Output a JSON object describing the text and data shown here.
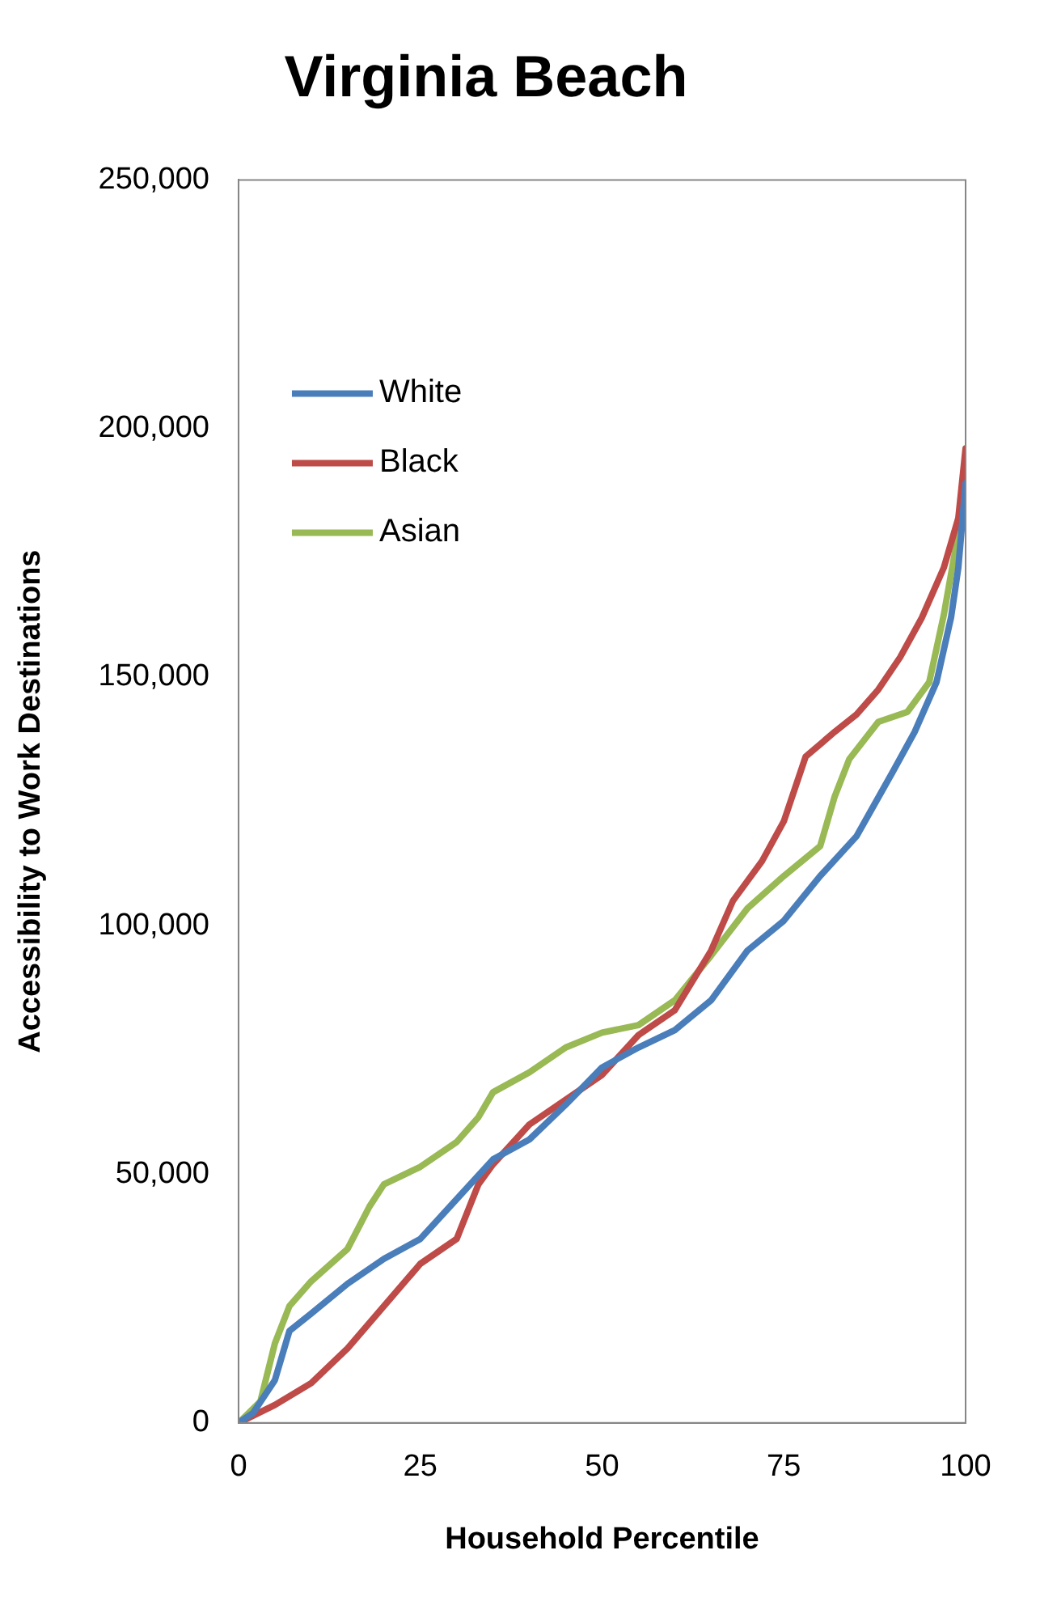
{
  "chart_data": {
    "type": "line",
    "title": "Virginia Beach",
    "xlabel": "Household Percentile",
    "ylabel": "Accessibility to Work Destinations",
    "xlim": [
      0,
      100
    ],
    "xticks": [
      0,
      25,
      50,
      75,
      100
    ],
    "ylim": [
      0,
      250000
    ],
    "yticks": [
      {
        "value": 0,
        "label": "0"
      },
      {
        "value": 50000,
        "label": "50,000"
      },
      {
        "value": 100000,
        "label": "100,000"
      },
      {
        "value": 150000,
        "label": "150,000"
      },
      {
        "value": 200000,
        "label": "200,000"
      },
      {
        "value": 250000,
        "label": "250,000"
      }
    ],
    "grid": false,
    "legend": "top left",
    "marker": "none",
    "line_style": "solid",
    "series": [
      {
        "name": "White",
        "color": "#4a7ebb",
        "x": [
          0,
          2,
          5,
          7,
          10,
          15,
          20,
          25,
          30,
          35,
          40,
          45,
          50,
          55,
          60,
          65,
          70,
          75,
          80,
          85,
          90,
          93,
          96,
          98,
          99,
          100
        ],
        "values": [
          0,
          2000,
          8600,
          18500,
          22000,
          28000,
          33000,
          37000,
          45000,
          53000,
          57000,
          64000,
          71500,
          75500,
          79000,
          85000,
          95000,
          101000,
          110000,
          118000,
          131000,
          139000,
          149000,
          162000,
          172000,
          189000
        ]
      },
      {
        "name": "Black",
        "color": "#be4b48",
        "x": [
          0,
          5,
          10,
          15,
          20,
          25,
          30,
          33,
          35,
          40,
          45,
          50,
          55,
          60,
          65,
          68,
          72,
          75,
          78,
          82,
          85,
          88,
          91,
          94,
          97,
          99,
          100
        ],
        "values": [
          0,
          3600,
          8000,
          15000,
          23500,
          32000,
          37000,
          48000,
          52000,
          60000,
          65000,
          70000,
          78000,
          83000,
          95000,
          105000,
          113000,
          121000,
          134000,
          139000,
          142500,
          147500,
          154000,
          162000,
          172000,
          182000,
          196000
        ]
      },
      {
        "name": "Asian",
        "color": "#98b954",
        "x": [
          0,
          3,
          5,
          7,
          10,
          15,
          18,
          20,
          25,
          30,
          33,
          35,
          40,
          45,
          50,
          55,
          60,
          65,
          70,
          75,
          80,
          82,
          84,
          88,
          92,
          95,
          97,
          99,
          100
        ],
        "values": [
          0,
          4300,
          16000,
          23500,
          28500,
          35000,
          43500,
          48000,
          51500,
          56500,
          61500,
          66500,
          70500,
          75500,
          78500,
          80000,
          85000,
          94000,
          103500,
          110000,
          116000,
          126000,
          133500,
          141000,
          143000,
          149000,
          162500,
          179000,
          191000
        ]
      }
    ]
  }
}
